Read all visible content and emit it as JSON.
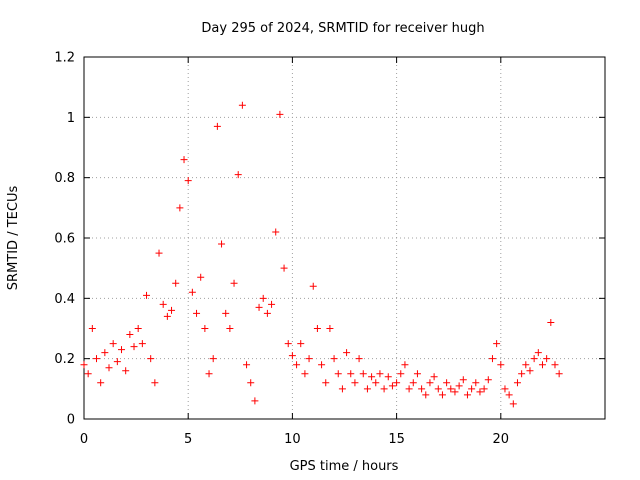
{
  "chart_data": {
    "type": "scatter",
    "title": "Day 295 of 2024, SRMTID for receiver hugh",
    "xlabel": "GPS time / hours",
    "ylabel": "SRMTID / TECUs",
    "xlim": [
      0,
      25
    ],
    "ylim": [
      0,
      1.2
    ],
    "xticks": [
      0,
      5,
      10,
      15,
      20
    ],
    "xtick_labels": [
      "0",
      "5",
      "10",
      "15",
      "20"
    ],
    "yticks": [
      0,
      0.2,
      0.4,
      0.6,
      0.8,
      1,
      1.2
    ],
    "ytick_labels": [
      "0",
      "0.2",
      "0.4",
      "0.6",
      "0.8",
      "1",
      "1.2"
    ],
    "grid": true,
    "marker": "+",
    "series": [
      {
        "name": "SRMTID",
        "color": "#ff0000",
        "x": [
          0.0,
          0.2,
          0.4,
          0.6,
          0.8,
          1.0,
          1.2,
          1.4,
          1.6,
          1.8,
          2.0,
          2.2,
          2.4,
          2.6,
          2.8,
          3.0,
          3.2,
          3.4,
          3.6,
          3.8,
          4.0,
          4.2,
          4.4,
          4.6,
          4.8,
          5.0,
          5.2,
          5.4,
          5.6,
          5.8,
          6.0,
          6.2,
          6.4,
          6.6,
          6.8,
          7.0,
          7.2,
          7.4,
          7.6,
          7.8,
          8.0,
          8.2,
          8.4,
          8.6,
          8.8,
          9.0,
          9.2,
          9.4,
          9.6,
          9.8,
          10.0,
          10.2,
          10.4,
          10.6,
          10.8,
          11.0,
          11.2,
          11.4,
          11.6,
          11.8,
          12.0,
          12.2,
          12.4,
          12.6,
          12.8,
          13.0,
          13.2,
          13.4,
          13.6,
          13.8,
          14.0,
          14.2,
          14.4,
          14.6,
          14.8,
          15.0,
          15.2,
          15.4,
          15.6,
          15.8,
          16.0,
          16.2,
          16.4,
          16.6,
          16.8,
          17.0,
          17.2,
          17.4,
          17.6,
          17.8,
          18.0,
          18.2,
          18.4,
          18.6,
          18.8,
          19.0,
          19.2,
          19.4,
          19.6,
          19.8,
          20.0,
          20.2,
          20.4,
          20.6,
          20.8,
          21.0,
          21.2,
          21.4,
          21.6,
          21.8,
          22.0,
          22.2,
          22.4,
          22.6,
          22.8
        ],
        "y": [
          0.18,
          0.15,
          0.3,
          0.2,
          0.12,
          0.22,
          0.17,
          0.25,
          0.19,
          0.23,
          0.16,
          0.28,
          0.24,
          0.3,
          0.25,
          0.41,
          0.2,
          0.12,
          0.55,
          0.38,
          0.34,
          0.36,
          0.45,
          0.7,
          0.86,
          0.79,
          0.42,
          0.35,
          0.47,
          0.3,
          0.15,
          0.2,
          0.97,
          0.58,
          0.35,
          0.3,
          0.45,
          0.81,
          1.04,
          0.18,
          0.12,
          0.06,
          0.37,
          0.4,
          0.35,
          0.38,
          0.62,
          1.01,
          0.5,
          0.25,
          0.21,
          0.18,
          0.25,
          0.15,
          0.2,
          0.44,
          0.3,
          0.18,
          0.12,
          0.3,
          0.2,
          0.15,
          0.1,
          0.22,
          0.15,
          0.12,
          0.2,
          0.15,
          0.1,
          0.14,
          0.12,
          0.15,
          0.1,
          0.14,
          0.11,
          0.12,
          0.15,
          0.18,
          0.1,
          0.12,
          0.15,
          0.1,
          0.08,
          0.12,
          0.14,
          0.1,
          0.08,
          0.12,
          0.1,
          0.09,
          0.11,
          0.13,
          0.08,
          0.1,
          0.12,
          0.09,
          0.1,
          0.13,
          0.2,
          0.25,
          0.18,
          0.1,
          0.08,
          0.05,
          0.12,
          0.15,
          0.18,
          0.16,
          0.2,
          0.22,
          0.18,
          0.2,
          0.32,
          0.18,
          0.15
        ]
      }
    ]
  }
}
